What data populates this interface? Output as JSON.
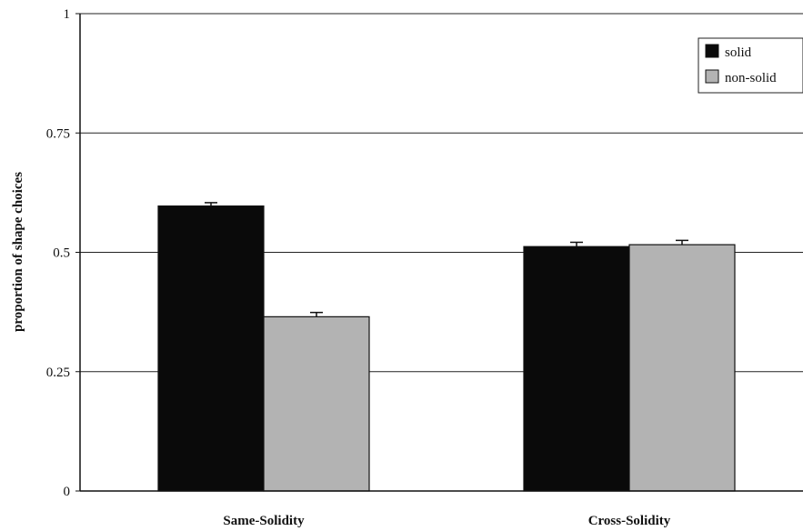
{
  "chart_data": {
    "type": "bar",
    "title": "",
    "xlabel": "",
    "ylabel": "proportion of shape choices",
    "ylim": [
      0,
      1
    ],
    "yticks": [
      0,
      0.25,
      0.5,
      0.75,
      1
    ],
    "ytick_labels": [
      "0",
      "0.25",
      "0.5",
      "0.75",
      "1"
    ],
    "categories": [
      "Same-Solidity",
      "Cross-Solidity"
    ],
    "grid": true,
    "legend_position": "top-right",
    "series": [
      {
        "name": "solid",
        "color": "#0a0a0a",
        "values": [
          0.597,
          0.512
        ],
        "errors": [
          0.007,
          0.009
        ]
      },
      {
        "name": "non-solid",
        "color": "#b3b3b3",
        "values": [
          0.365,
          0.516
        ],
        "errors": [
          0.009,
          0.009
        ]
      }
    ]
  }
}
